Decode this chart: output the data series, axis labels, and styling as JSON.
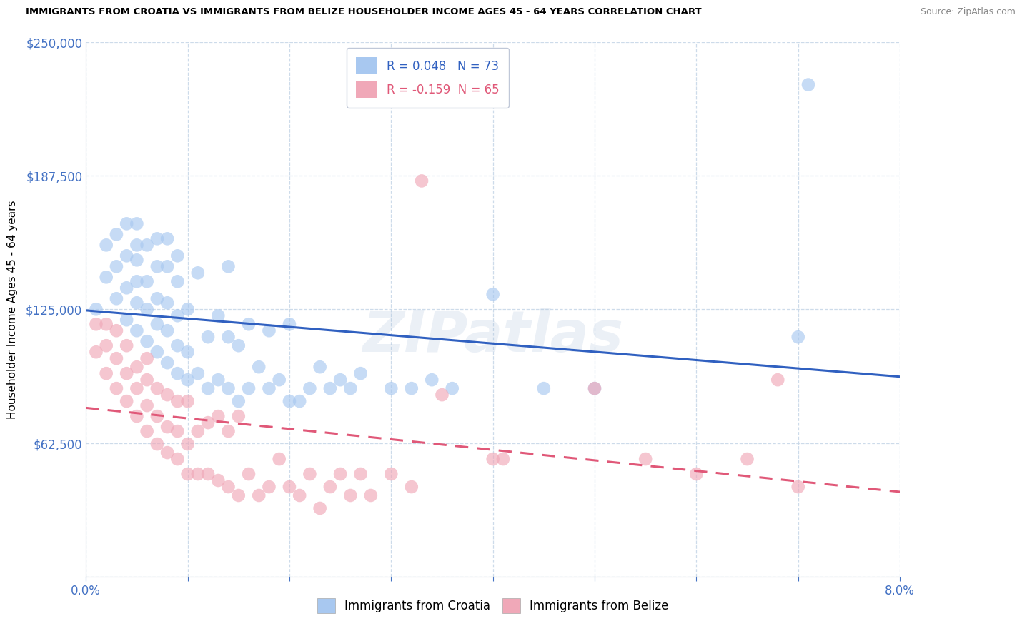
{
  "title": "IMMIGRANTS FROM CROATIA VS IMMIGRANTS FROM BELIZE HOUSEHOLDER INCOME AGES 45 - 64 YEARS CORRELATION CHART",
  "source": "Source: ZipAtlas.com",
  "ylabel": "Householder Income Ages 45 - 64 years",
  "xlim": [
    0.0,
    0.08
  ],
  "ylim": [
    0,
    250000
  ],
  "yticks": [
    0,
    62500,
    125000,
    187500,
    250000
  ],
  "ytick_labels": [
    "",
    "$62,500",
    "$125,000",
    "$187,500",
    "$250,000"
  ],
  "xticks": [
    0.0,
    0.01,
    0.02,
    0.03,
    0.04,
    0.05,
    0.06,
    0.07,
    0.08
  ],
  "xtick_labels": [
    "0.0%",
    "",
    "",
    "",
    "",
    "",
    "",
    "",
    "8.0%"
  ],
  "croatia_color": "#a8c8f0",
  "belize_color": "#f0a8b8",
  "croatia_line_color": "#3060c0",
  "belize_line_color": "#e05878",
  "croatia_R": 0.048,
  "croatia_N": 73,
  "belize_R": -0.159,
  "belize_N": 65,
  "watermark": "ZIPatlas",
  "legend_label_croatia": "Immigrants from Croatia",
  "legend_label_belize": "Immigrants from Belize",
  "croatia_scatter_x": [
    0.001,
    0.002,
    0.002,
    0.003,
    0.003,
    0.003,
    0.004,
    0.004,
    0.004,
    0.004,
    0.005,
    0.005,
    0.005,
    0.005,
    0.005,
    0.005,
    0.006,
    0.006,
    0.006,
    0.006,
    0.007,
    0.007,
    0.007,
    0.007,
    0.007,
    0.008,
    0.008,
    0.008,
    0.008,
    0.008,
    0.009,
    0.009,
    0.009,
    0.009,
    0.009,
    0.01,
    0.01,
    0.01,
    0.011,
    0.011,
    0.012,
    0.012,
    0.013,
    0.013,
    0.014,
    0.014,
    0.014,
    0.015,
    0.015,
    0.016,
    0.016,
    0.017,
    0.018,
    0.018,
    0.019,
    0.02,
    0.02,
    0.021,
    0.022,
    0.023,
    0.024,
    0.025,
    0.026,
    0.027,
    0.03,
    0.032,
    0.034,
    0.036,
    0.04,
    0.045,
    0.05,
    0.07,
    0.071
  ],
  "croatia_scatter_y": [
    125000,
    140000,
    155000,
    130000,
    145000,
    160000,
    120000,
    135000,
    150000,
    165000,
    115000,
    128000,
    138000,
    148000,
    155000,
    165000,
    110000,
    125000,
    138000,
    155000,
    105000,
    118000,
    130000,
    145000,
    158000,
    100000,
    115000,
    128000,
    145000,
    158000,
    95000,
    108000,
    122000,
    138000,
    150000,
    92000,
    105000,
    125000,
    95000,
    142000,
    88000,
    112000,
    92000,
    122000,
    88000,
    112000,
    145000,
    82000,
    108000,
    88000,
    118000,
    98000,
    88000,
    115000,
    92000,
    82000,
    118000,
    82000,
    88000,
    98000,
    88000,
    92000,
    88000,
    95000,
    88000,
    88000,
    92000,
    88000,
    132000,
    88000,
    88000,
    112000,
    230000
  ],
  "belize_scatter_x": [
    0.001,
    0.001,
    0.002,
    0.002,
    0.002,
    0.003,
    0.003,
    0.003,
    0.004,
    0.004,
    0.004,
    0.005,
    0.005,
    0.005,
    0.006,
    0.006,
    0.006,
    0.006,
    0.007,
    0.007,
    0.007,
    0.008,
    0.008,
    0.008,
    0.009,
    0.009,
    0.009,
    0.01,
    0.01,
    0.01,
    0.011,
    0.011,
    0.012,
    0.012,
    0.013,
    0.013,
    0.014,
    0.014,
    0.015,
    0.015,
    0.016,
    0.017,
    0.018,
    0.019,
    0.02,
    0.021,
    0.022,
    0.023,
    0.024,
    0.025,
    0.026,
    0.027,
    0.028,
    0.03,
    0.032,
    0.033,
    0.035,
    0.04,
    0.041,
    0.05,
    0.055,
    0.06,
    0.065,
    0.068,
    0.07
  ],
  "belize_scatter_y": [
    105000,
    118000,
    95000,
    108000,
    118000,
    88000,
    102000,
    115000,
    82000,
    95000,
    108000,
    75000,
    88000,
    98000,
    68000,
    80000,
    92000,
    102000,
    62000,
    75000,
    88000,
    58000,
    70000,
    85000,
    55000,
    68000,
    82000,
    48000,
    62000,
    82000,
    48000,
    68000,
    48000,
    72000,
    45000,
    75000,
    42000,
    68000,
    38000,
    75000,
    48000,
    38000,
    42000,
    55000,
    42000,
    38000,
    48000,
    32000,
    42000,
    48000,
    38000,
    48000,
    38000,
    48000,
    42000,
    185000,
    85000,
    55000,
    55000,
    88000,
    55000,
    48000,
    55000,
    92000,
    42000
  ]
}
